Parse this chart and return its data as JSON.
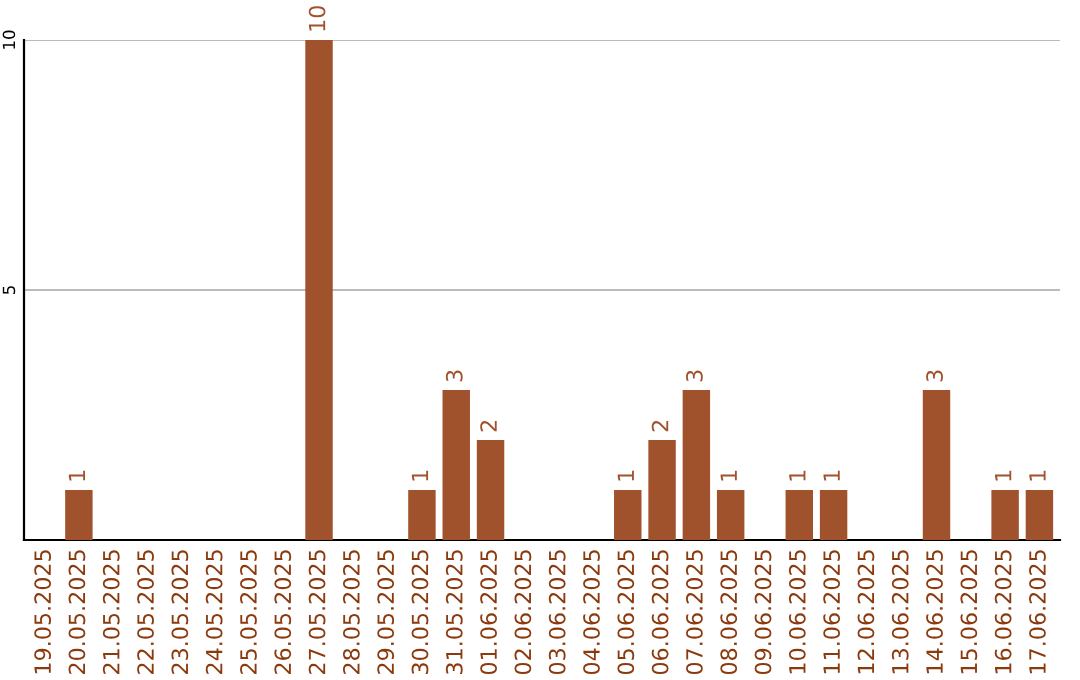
{
  "chart_data": {
    "type": "bar",
    "categories": [
      "19.05.2025",
      "20.05.2025",
      "21.05.2025",
      "22.05.2025",
      "23.05.2025",
      "24.05.2025",
      "25.05.2025",
      "26.05.2025",
      "27.05.2025",
      "28.05.2025",
      "29.05.2025",
      "30.05.2025",
      "31.05.2025",
      "01.06.2025",
      "02.06.2025",
      "03.06.2025",
      "04.06.2025",
      "05.06.2025",
      "06.06.2025",
      "07.06.2025",
      "08.06.2025",
      "09.06.2025",
      "10.06.2025",
      "11.06.2025",
      "12.06.2025",
      "13.06.2025",
      "14.06.2025",
      "15.06.2025",
      "16.06.2025",
      "17.06.2025"
    ],
    "values": [
      0,
      1,
      0,
      0,
      0,
      0,
      0,
      0,
      10,
      0,
      0,
      1,
      3,
      2,
      0,
      0,
      0,
      1,
      2,
      3,
      1,
      0,
      1,
      1,
      0,
      0,
      3,
      0,
      1,
      1
    ],
    "value_labels": [
      null,
      "1",
      null,
      null,
      null,
      null,
      null,
      null,
      "10",
      null,
      null,
      "1",
      "3",
      "2",
      null,
      null,
      null,
      "1",
      "2",
      "3",
      "1",
      null,
      "1",
      "1",
      null,
      null,
      "3",
      null,
      "1",
      "1"
    ],
    "color": "#a0522d",
    "ylim": [
      0,
      10
    ],
    "yticks": [
      5,
      10
    ],
    "grid": "y"
  }
}
